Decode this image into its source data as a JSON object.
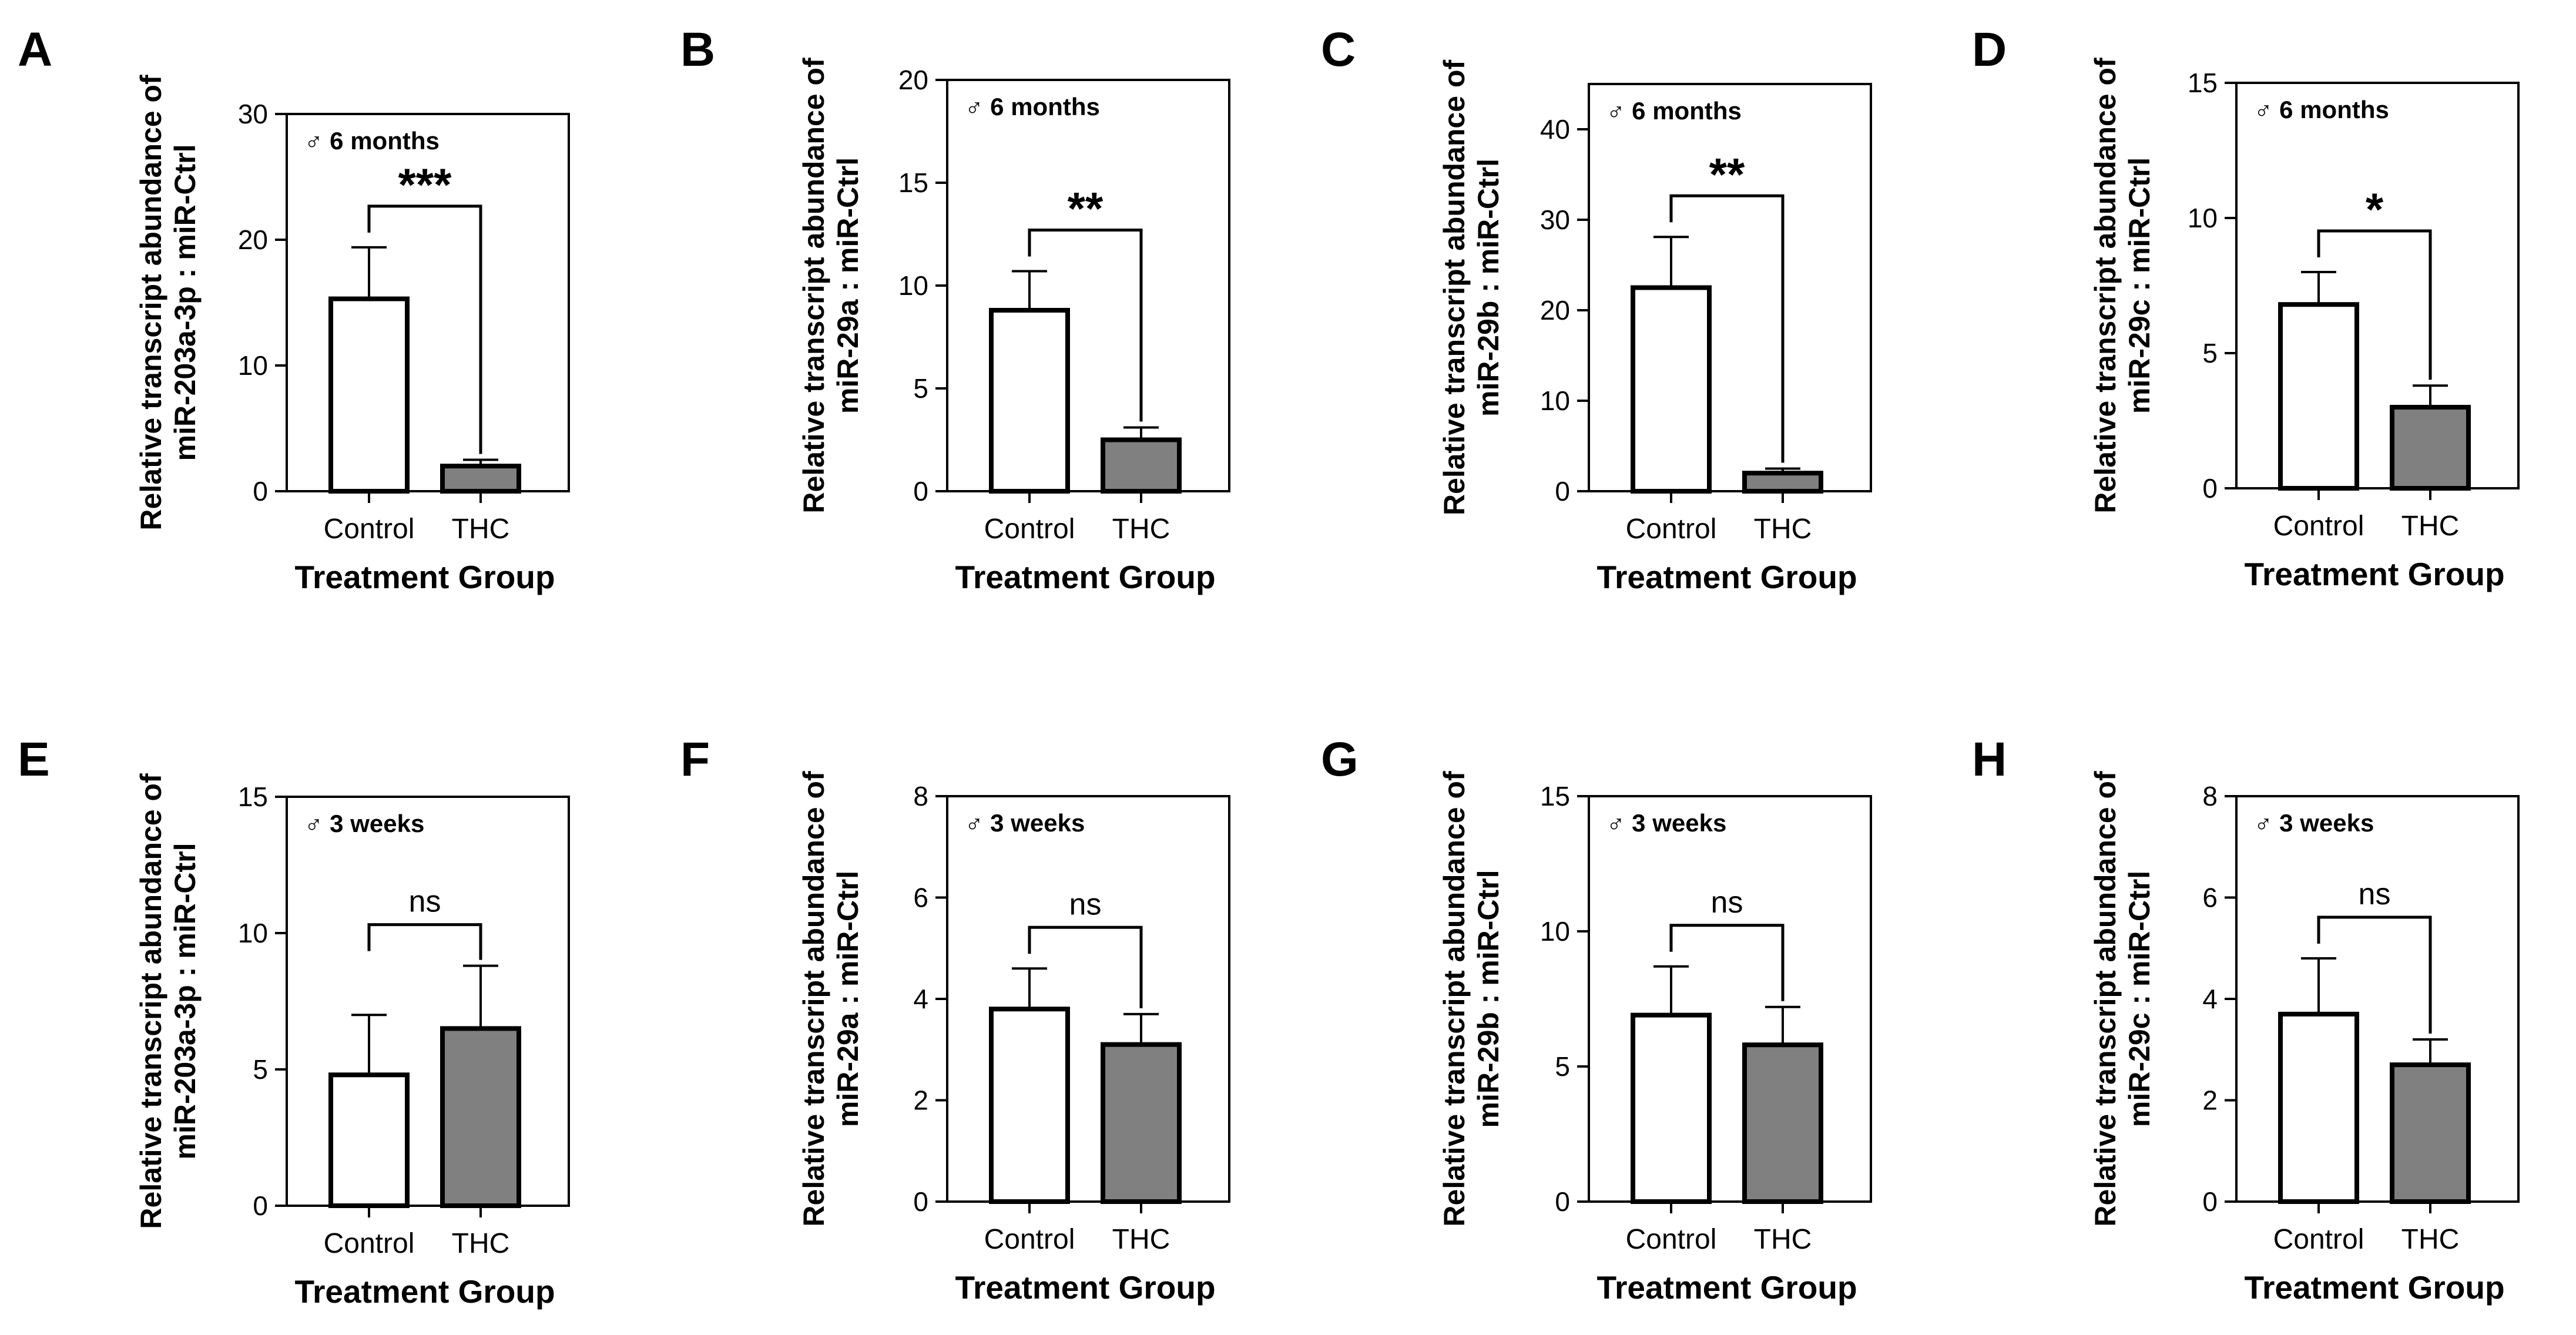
{
  "figure": {
    "x_axis_title": "Treatment Group"
  },
  "chart_data": [
    {
      "panel": "A",
      "type": "bar",
      "legend": "♂ 6 months",
      "ylabel_line1": "Relative transcript abundance of",
      "ylabel_line2": "miR-203a-3p : miR-Ctrl",
      "xlabel": "Treatment Group",
      "categories": [
        "Control",
        "THC"
      ],
      "values": [
        15.3,
        2.0
      ],
      "errors": [
        4.1,
        0.5
      ],
      "bar_colors": [
        "#ffffff",
        "#808080"
      ],
      "ylim": [
        0,
        30
      ],
      "yticks": [
        0,
        10,
        20,
        30
      ],
      "significance": "***"
    },
    {
      "panel": "B",
      "type": "bar",
      "legend": "♂ 6 months",
      "ylabel_line1": "Relative transcript abundance of",
      "ylabel_line2": "miR-29a : miR-Ctrl",
      "xlabel": "Treatment Group",
      "categories": [
        "Control",
        "THC"
      ],
      "values": [
        8.8,
        2.5
      ],
      "errors": [
        1.9,
        0.6
      ],
      "bar_colors": [
        "#ffffff",
        "#808080"
      ],
      "ylim": [
        0,
        20
      ],
      "yticks": [
        0,
        5,
        10,
        15,
        20
      ],
      "significance": "**"
    },
    {
      "panel": "C",
      "type": "bar",
      "legend": "♂ 6 months",
      "ylabel_line1": "Relative transcript abundance of",
      "ylabel_line2": "miR-29b : miR-Ctrl",
      "xlabel": "Treatment Group",
      "categories": [
        "Control",
        "THC"
      ],
      "values": [
        22.5,
        2.0
      ],
      "errors": [
        5.6,
        0.5
      ],
      "bar_colors": [
        "#ffffff",
        "#808080"
      ],
      "ylim": [
        0,
        45
      ],
      "yticks": [
        0,
        10,
        20,
        30,
        40
      ],
      "significance": "**"
    },
    {
      "panel": "D",
      "type": "bar",
      "legend": "♂ 6 months",
      "ylabel_line1": "Relative transcript abundance of",
      "ylabel_line2": "miR-29c : miR-Ctrl",
      "xlabel": "Treatment Group",
      "categories": [
        "Control",
        "THC"
      ],
      "values": [
        6.8,
        3.0
      ],
      "errors": [
        1.2,
        0.8
      ],
      "bar_colors": [
        "#ffffff",
        "#808080"
      ],
      "ylim": [
        0,
        15
      ],
      "yticks": [
        0,
        5,
        10,
        15
      ],
      "significance": "*"
    },
    {
      "panel": "E",
      "type": "bar",
      "legend": "♂ 3 weeks",
      "ylabel_line1": "Relative transcript abundance of",
      "ylabel_line2": "miR-203a-3p : miR-Ctrl",
      "xlabel": "Treatment Group",
      "categories": [
        "Control",
        "THC"
      ],
      "values": [
        4.8,
        6.5
      ],
      "errors": [
        2.2,
        2.3
      ],
      "bar_colors": [
        "#ffffff",
        "#808080"
      ],
      "ylim": [
        0,
        15
      ],
      "yticks": [
        0,
        5,
        10,
        15
      ],
      "significance": "ns"
    },
    {
      "panel": "F",
      "type": "bar",
      "legend": "♂ 3 weeks",
      "ylabel_line1": "Relative transcript abundance of",
      "ylabel_line2": "miR-29a : miR-Ctrl",
      "xlabel": "Treatment Group",
      "categories": [
        "Control",
        "THC"
      ],
      "values": [
        3.8,
        3.1
      ],
      "errors": [
        0.8,
        0.6
      ],
      "bar_colors": [
        "#ffffff",
        "#808080"
      ],
      "ylim": [
        0,
        8
      ],
      "yticks": [
        0,
        2,
        4,
        6,
        8
      ],
      "significance": "ns"
    },
    {
      "panel": "G",
      "type": "bar",
      "legend": "♂ 3 weeks",
      "ylabel_line1": "Relative transcript abundance of",
      "ylabel_line2": "miR-29b : miR-Ctrl",
      "xlabel": "Treatment Group",
      "categories": [
        "Control",
        "THC"
      ],
      "values": [
        6.9,
        5.8
      ],
      "errors": [
        1.8,
        1.4
      ],
      "bar_colors": [
        "#ffffff",
        "#808080"
      ],
      "ylim": [
        0,
        15
      ],
      "yticks": [
        0,
        5,
        10,
        15
      ],
      "significance": "ns"
    },
    {
      "panel": "H",
      "type": "bar",
      "legend": "♂ 3 weeks",
      "ylabel_line1": "Relative transcript abundance of",
      "ylabel_line2": "miR-29c : miR-Ctrl",
      "xlabel": "Treatment Group",
      "categories": [
        "Control",
        "THC"
      ],
      "values": [
        3.7,
        2.7
      ],
      "errors": [
        1.1,
        0.5
      ],
      "bar_colors": [
        "#ffffff",
        "#808080"
      ],
      "ylim": [
        0,
        8
      ],
      "yticks": [
        0,
        2,
        4,
        6,
        8
      ],
      "significance": "ns"
    }
  ]
}
